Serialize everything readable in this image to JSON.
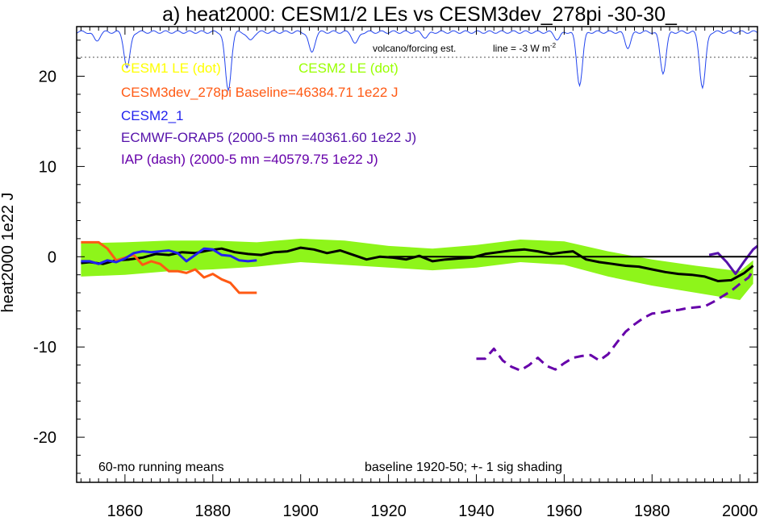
{
  "chart_data": {
    "type": "line",
    "title": "a) heat2000: CESM1/2 LEs vs CESM3dev_278pi -30-30_",
    "ylabel": "heat2000 1e22 J",
    "xlabel": "",
    "xlim": [
      1849,
      2004
    ],
    "ylim": [
      -25,
      25.5
    ],
    "xticks": [
      1860,
      1880,
      1900,
      1920,
      1940,
      1960,
      1980,
      2000
    ],
    "yticks": [
      20,
      10,
      0,
      -10,
      -20
    ],
    "grid": false,
    "legend": [
      {
        "text": "CESM1 LE (dot)",
        "color": "#ffff00"
      },
      {
        "text": "CESM2 LE (dot)",
        "color": "#99ff00"
      },
      {
        "text": "CESM3dev_278pi Baseline=46384.71 1e22 J",
        "color": "#ff5a14"
      },
      {
        "text": "CESM2_1",
        "color": "#2222ee"
      },
      {
        "text": "ECMWF-ORAP5 (2000-5 mn =40361.60 1e22 J)",
        "color": "#5511aa"
      },
      {
        "text": "IAP (dash) (2000-5 mn =40579.75 1e22 J)",
        "color": "#6600aa"
      }
    ],
    "annotations": {
      "volcano": "volcano/forcing est.",
      "line_label": "line = -3 W m",
      "line_sup": "-2",
      "bottom_left": "60-mo running means",
      "bottom_right": "baseline 1920-50; +- 1 sig shading"
    },
    "volcano_baseline_y": 22.1,
    "band": {
      "name": "CESM2 LE",
      "color": "#8ef51a",
      "x": [
        1850,
        1860,
        1870,
        1880,
        1890,
        1900,
        1910,
        1920,
        1930,
        1940,
        1950,
        1960,
        1970,
        1980,
        1990,
        2000,
        2003
      ],
      "upper": [
        1.5,
        1.6,
        1.8,
        1.8,
        1.6,
        2.0,
        1.8,
        1.2,
        0.9,
        1.3,
        1.9,
        1.7,
        0.6,
        -0.3,
        -1.0,
        -1.6,
        -0.4
      ],
      "lower": [
        -2.2,
        -2.0,
        -1.6,
        -1.4,
        -1.1,
        -0.6,
        -0.9,
        -1.2,
        -1.5,
        -1.2,
        -0.6,
        -0.9,
        -2.2,
        -3.2,
        -4.0,
        -4.8,
        -3.0
      ]
    },
    "series": [
      {
        "name": "CESM2 LE",
        "color": "#000000",
        "width": 3,
        "x": [
          1850,
          1852,
          1855,
          1858,
          1861,
          1864,
          1867,
          1870,
          1873,
          1876,
          1879,
          1882,
          1885,
          1888,
          1891,
          1894,
          1897,
          1900,
          1903,
          1906,
          1909,
          1912,
          1915,
          1918,
          1921,
          1924,
          1927,
          1930,
          1933,
          1936,
          1939,
          1942,
          1945,
          1948,
          1951,
          1954,
          1957,
          1960,
          1962,
          1965,
          1968,
          1971,
          1974,
          1977,
          1980,
          1983,
          1986,
          1989,
          1992,
          1995,
          1998,
          2001,
          2003
        ],
        "y": [
          -0.7,
          -0.6,
          -0.8,
          -0.4,
          -0.3,
          -0.1,
          0.3,
          0.2,
          0.5,
          0.4,
          0.7,
          0.9,
          0.5,
          0.3,
          0.2,
          0.5,
          0.6,
          1.0,
          0.8,
          0.4,
          0.7,
          0.2,
          -0.3,
          0.0,
          -0.1,
          -0.3,
          0.1,
          -0.5,
          -0.3,
          -0.2,
          -0.1,
          0.3,
          0.5,
          0.7,
          0.8,
          0.6,
          0.3,
          0.5,
          0.6,
          -0.3,
          -0.6,
          -0.8,
          -1.0,
          -1.1,
          -1.4,
          -1.7,
          -1.9,
          -2.0,
          -2.2,
          -2.7,
          -2.6,
          -1.8,
          -1.0
        ]
      },
      {
        "name": "CESM3dev_278pi",
        "color": "#ff5a14",
        "width": 3,
        "x": [
          1850,
          1854,
          1856,
          1858,
          1860,
          1862,
          1864,
          1866,
          1868,
          1870,
          1872,
          1874,
          1876,
          1878,
          1880,
          1882,
          1884,
          1886,
          1888,
          1890
        ],
        "y": [
          1.6,
          1.6,
          0.9,
          -0.4,
          -0.1,
          0.2,
          -0.9,
          -0.5,
          -0.8,
          -1.6,
          -1.6,
          -1.8,
          -1.4,
          -2.3,
          -1.9,
          -2.5,
          -2.9,
          -4.0,
          -4.0,
          -4.0
        ]
      },
      {
        "name": "CESM2_1",
        "color": "#2222ee",
        "width": 3,
        "x": [
          1850,
          1852,
          1854,
          1856,
          1858,
          1860,
          1862,
          1864,
          1866,
          1868,
          1870,
          1872,
          1874,
          1876,
          1878,
          1880,
          1882,
          1884,
          1886,
          1888,
          1890
        ],
        "y": [
          -0.5,
          -0.5,
          -0.8,
          -0.4,
          -0.6,
          -0.2,
          0.4,
          0.6,
          0.5,
          0.6,
          0.7,
          0.4,
          -0.5,
          0.2,
          0.9,
          0.8,
          0.2,
          0.1,
          -0.4,
          -0.5,
          -0.4
        ]
      },
      {
        "name": "IAP",
        "color": "#6600aa",
        "width": 3,
        "dashed": true,
        "x": [
          1940,
          1942,
          1944,
          1946,
          1948,
          1950,
          1952,
          1954,
          1956,
          1958,
          1960,
          1962,
          1964,
          1966,
          1968,
          1970,
          1972,
          1974,
          1976,
          1978,
          1980,
          1982,
          1984,
          1986,
          1988,
          1990,
          1992,
          1994,
          1996,
          1998,
          2000,
          2002,
          2003
        ],
        "y": [
          -11.3,
          -11.3,
          -10.2,
          -11.5,
          -12.2,
          -12.6,
          -12.0,
          -11.2,
          -12.1,
          -12.5,
          -11.8,
          -11.2,
          -11.0,
          -10.9,
          -11.5,
          -10.8,
          -9.5,
          -8.3,
          -7.5,
          -6.8,
          -6.3,
          -6.2,
          -6.0,
          -5.9,
          -5.7,
          -5.6,
          -5.5,
          -5.0,
          -4.4,
          -3.8,
          -3.0,
          -2.3,
          -1.5
        ]
      },
      {
        "name": "ECMWF-ORAP5",
        "color": "#5511aa",
        "width": 3,
        "x": [
          1993,
          1995,
          1997,
          1999,
          2001,
          2003,
          2004
        ],
        "y": [
          0.2,
          0.4,
          -0.6,
          -1.9,
          -0.5,
          0.8,
          1.2
        ]
      },
      {
        "name": "CESM2 LE early",
        "color": "#000000",
        "width": 2,
        "x": [
          1920,
          2004
        ],
        "y": [
          0.0,
          0.0
        ]
      }
    ],
    "volcano_dips": [
      {
        "x": 1883.5,
        "depth": 6.5
      },
      {
        "x": 1902.5,
        "depth": 2.3
      },
      {
        "x": 1912.5,
        "depth": 1.3
      },
      {
        "x": 1963.5,
        "depth": 5.8
      },
      {
        "x": 1974.5,
        "depth": 1.7
      },
      {
        "x": 1982.5,
        "depth": 4.5
      },
      {
        "x": 1991.5,
        "depth": 6.2
      },
      {
        "x": 1860.5,
        "depth": 4.0
      },
      {
        "x": 1853.5,
        "depth": 1.0
      },
      {
        "x": 1888.5,
        "depth": 1.0
      },
      {
        "x": 1928.5,
        "depth": 0.6
      },
      {
        "x": 1958.5,
        "depth": 0.8
      }
    ]
  }
}
